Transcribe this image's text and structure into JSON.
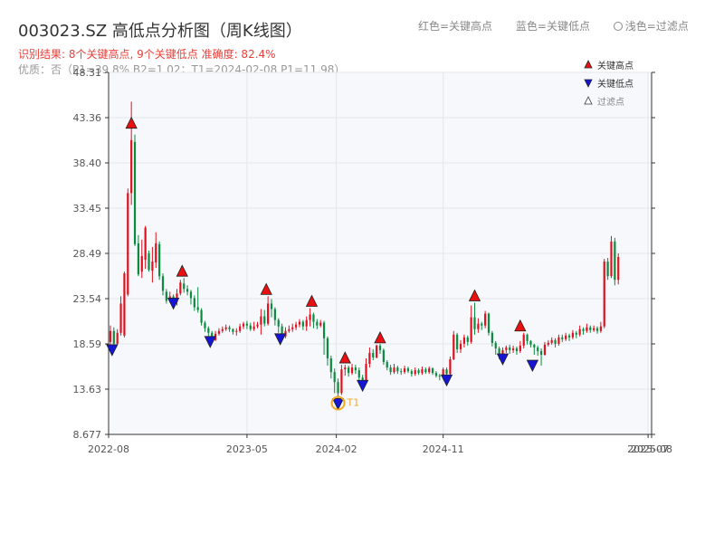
{
  "title": "003023.SZ 高低点分析图（周K线图）",
  "subtitle_result": "识别结果: 8个关键高点, 9个关键低点  准确度: 82.4%",
  "subtitle_detail": "优质：否（P1=39.8%  B2=1.02；T1=2024-02-08 P1=11.98）",
  "top_legend": {
    "red": "红色=关键高点",
    "blue": "蓝色=关键低点",
    "light": "浅色=过滤点"
  },
  "colors": {
    "up": "#e0101e",
    "down": "#0c8a3e",
    "high_marker": "#e81010",
    "low_marker": "#1515d6",
    "t1_marker": "#f5a623",
    "plot_bg": "#f6f8fb"
  },
  "chart_data": {
    "type": "candlestick",
    "xlabel": "",
    "ylabel": "",
    "x_ticks": [
      "2022-08",
      "2023-05",
      "2024-02",
      "2024-11",
      "2025-07",
      "2025-08"
    ],
    "y_ticks": [
      "8.677",
      "13.63",
      "18.59",
      "23.54",
      "28.49",
      "33.45",
      "38.40",
      "43.36",
      "48.31"
    ],
    "ylim": [
      8.677,
      48.31
    ],
    "x_range_weeks": [
      0,
      155
    ],
    "legend_position": "top-right",
    "legend": [
      {
        "label": "关键高点",
        "marker": "triangle-up",
        "color": "#e81010"
      },
      {
        "label": "关键低点",
        "marker": "triangle-down",
        "color": "#1515d6"
      },
      {
        "label": "过滤点",
        "marker": "triangle-up-hollow",
        "color": "#888888"
      }
    ],
    "t1_label": "T1",
    "key_highs": [
      {
        "week": 6.5,
        "value": 42.0
      },
      {
        "week": 21,
        "value": 25.8
      },
      {
        "week": 45,
        "value": 23.8
      },
      {
        "week": 58,
        "value": 22.5
      },
      {
        "week": 67.5,
        "value": 16.3
      },
      {
        "week": 77.5,
        "value": 18.5
      },
      {
        "week": 104.5,
        "value": 23.1
      },
      {
        "week": 117.5,
        "value": 19.8
      }
    ],
    "key_lows": [
      {
        "week": 1,
        "value": 17.9
      },
      {
        "week": 18.5,
        "value": 23.0
      },
      {
        "week": 29,
        "value": 18.8
      },
      {
        "week": 49,
        "value": 19.1
      },
      {
        "week": 65.5,
        "value": 12.0
      },
      {
        "week": 72.5,
        "value": 14.0
      },
      {
        "week": 96.5,
        "value": 14.6
      },
      {
        "week": 112.5,
        "value": 16.9
      },
      {
        "week": 121,
        "value": 16.2
      }
    ],
    "t1_point": {
      "week": 65.5,
      "value": 12.0
    },
    "weekly_candles": [
      [
        18.8,
        20.0,
        20.6,
        18.2
      ],
      [
        20.0,
        18.6,
        20.4,
        18.3
      ],
      [
        18.6,
        19.8,
        20.2,
        18.5
      ],
      [
        19.8,
        23.0,
        23.8,
        19.5
      ],
      [
        19.5,
        26.3,
        26.5,
        19.3
      ],
      [
        24.0,
        35.1,
        35.6,
        23.8
      ],
      [
        35.1,
        40.9,
        45.1,
        33.8
      ],
      [
        40.7,
        29.5,
        41.5,
        29.3
      ],
      [
        29.6,
        26.2,
        30.5,
        26.0
      ],
      [
        26.5,
        28.2,
        30.0,
        25.8
      ],
      [
        27.8,
        31.3,
        31.5,
        26.8
      ],
      [
        28.5,
        26.7,
        28.8,
        26.5
      ],
      [
        26.6,
        27.6,
        29.2,
        25.3
      ],
      [
        27.5,
        29.6,
        30.8,
        26.9
      ],
      [
        29.5,
        26.0,
        29.8,
        25.6
      ],
      [
        26.0,
        24.4,
        26.3,
        23.9
      ],
      [
        24.3,
        23.3,
        24.6,
        23.0
      ],
      [
        23.3,
        23.8,
        24.3,
        23.1
      ],
      [
        23.8,
        23.2,
        24.0,
        22.9
      ],
      [
        23.2,
        24.1,
        24.6,
        22.8
      ],
      [
        24.1,
        25.3,
        25.6,
        23.9
      ],
      [
        25.2,
        24.6,
        25.8,
        24.2
      ],
      [
        24.6,
        24.3,
        25.0,
        23.9
      ],
      [
        24.3,
        23.6,
        24.5,
        22.9
      ],
      [
        23.6,
        22.6,
        23.9,
        22.2
      ],
      [
        22.6,
        22.3,
        24.8,
        22.0
      ],
      [
        22.3,
        20.9,
        22.5,
        20.6
      ],
      [
        20.9,
        20.3,
        21.1,
        19.9
      ],
      [
        20.3,
        19.8,
        20.5,
        19.4
      ],
      [
        19.8,
        19.0,
        20.0,
        18.8
      ],
      [
        19.0,
        19.7,
        20.0,
        18.9
      ],
      [
        19.7,
        20.0,
        20.3,
        19.5
      ],
      [
        20.0,
        20.2,
        20.5,
        19.8
      ],
      [
        20.2,
        20.4,
        20.7,
        20.0
      ],
      [
        20.4,
        20.2,
        20.6,
        19.9
      ],
      [
        20.2,
        19.9,
        20.3,
        19.6
      ],
      [
        19.9,
        20.0,
        20.3,
        19.5
      ],
      [
        20.0,
        20.5,
        20.8,
        19.8
      ],
      [
        20.5,
        20.8,
        21.0,
        20.2
      ],
      [
        20.8,
        20.6,
        21.1,
        20.2
      ],
      [
        20.6,
        20.2,
        20.9,
        20.0
      ],
      [
        20.2,
        20.5,
        21.0,
        20.0
      ],
      [
        20.5,
        20.7,
        21.0,
        20.3
      ],
      [
        20.7,
        21.6,
        22.4,
        19.6
      ],
      [
        21.6,
        20.8,
        22.3,
        20.5
      ],
      [
        20.8,
        23.0,
        23.8,
        20.6
      ],
      [
        23.0,
        22.4,
        23.5,
        21.5
      ],
      [
        22.4,
        21.2,
        22.6,
        20.6
      ],
      [
        21.2,
        20.5,
        21.4,
        19.8
      ],
      [
        20.5,
        19.4,
        20.8,
        19.1
      ],
      [
        19.4,
        20.0,
        20.4,
        19.2
      ],
      [
        20.0,
        20.2,
        20.6,
        19.8
      ],
      [
        20.2,
        20.4,
        20.8,
        19.9
      ],
      [
        20.4,
        20.7,
        21.0,
        20.1
      ],
      [
        20.7,
        21.0,
        21.3,
        20.4
      ],
      [
        21.0,
        20.5,
        21.2,
        20.1
      ],
      [
        20.5,
        21.2,
        21.6,
        20.0
      ],
      [
        21.2,
        21.8,
        22.5,
        20.5
      ],
      [
        21.8,
        21.0,
        22.0,
        20.3
      ],
      [
        21.0,
        20.6,
        21.3,
        20.2
      ],
      [
        20.6,
        20.9,
        21.2,
        20.4
      ],
      [
        20.9,
        19.2,
        21.1,
        17.4
      ],
      [
        19.2,
        17.0,
        19.4,
        16.2
      ],
      [
        17.0,
        15.5,
        17.3,
        14.8
      ],
      [
        15.5,
        14.4,
        15.9,
        13.2
      ],
      [
        14.4,
        13.2,
        14.8,
        12.0
      ],
      [
        13.2,
        15.8,
        16.3,
        13.0
      ],
      [
        15.8,
        16.0,
        16.3,
        15.1
      ],
      [
        16.0,
        15.4,
        16.2,
        15.0
      ],
      [
        15.4,
        16.0,
        16.4,
        15.2
      ],
      [
        16.0,
        15.7,
        16.3,
        15.3
      ],
      [
        15.7,
        14.9,
        16.0,
        14.6
      ],
      [
        14.9,
        14.5,
        15.2,
        14.0
      ],
      [
        14.5,
        16.4,
        17.0,
        14.3
      ],
      [
        16.4,
        17.6,
        18.2,
        16.0
      ],
      [
        17.6,
        17.1,
        18.0,
        16.8
      ],
      [
        17.1,
        18.4,
        18.5,
        17.0
      ],
      [
        18.4,
        17.9,
        18.6,
        17.5
      ],
      [
        17.9,
        16.6,
        18.1,
        16.3
      ],
      [
        16.6,
        16.0,
        16.8,
        15.7
      ],
      [
        16.0,
        15.5,
        16.3,
        15.2
      ],
      [
        15.5,
        16.0,
        16.4,
        15.3
      ],
      [
        16.0,
        15.6,
        16.2,
        15.3
      ],
      [
        15.6,
        15.5,
        15.9,
        15.2
      ],
      [
        15.5,
        15.9,
        16.2,
        15.3
      ],
      [
        15.9,
        15.6,
        16.1,
        15.4
      ],
      [
        15.6,
        15.3,
        15.8,
        15.0
      ],
      [
        15.3,
        15.7,
        16.0,
        15.1
      ],
      [
        15.7,
        15.4,
        15.9,
        15.2
      ],
      [
        15.4,
        15.8,
        16.1,
        15.2
      ],
      [
        15.8,
        15.5,
        16.0,
        15.3
      ],
      [
        15.5,
        15.9,
        16.1,
        15.3
      ],
      [
        15.9,
        15.4,
        16.0,
        15.2
      ],
      [
        15.4,
        15.1,
        15.6,
        14.9
      ],
      [
        15.1,
        15.0,
        15.3,
        14.6
      ],
      [
        15.0,
        15.8,
        16.0,
        14.7
      ],
      [
        15.8,
        15.3,
        16.0,
        14.6
      ],
      [
        15.3,
        16.9,
        17.2,
        15.1
      ],
      [
        16.9,
        19.6,
        20.0,
        16.8
      ],
      [
        19.6,
        18.0,
        19.8,
        17.6
      ],
      [
        18.0,
        18.6,
        19.0,
        17.6
      ],
      [
        18.6,
        19.3,
        19.6,
        18.2
      ],
      [
        19.3,
        18.8,
        19.5,
        18.4
      ],
      [
        18.8,
        21.5,
        22.8,
        18.6
      ],
      [
        21.5,
        20.2,
        23.1,
        19.6
      ],
      [
        20.2,
        20.8,
        21.4,
        19.8
      ],
      [
        20.8,
        20.6,
        21.0,
        20.1
      ],
      [
        20.6,
        21.9,
        22.2,
        20.3
      ],
      [
        21.9,
        19.8,
        22.0,
        19.5
      ],
      [
        19.8,
        18.7,
        20.0,
        18.3
      ],
      [
        18.7,
        18.1,
        18.9,
        17.4
      ],
      [
        18.1,
        17.4,
        18.3,
        16.9
      ],
      [
        17.4,
        17.9,
        18.2,
        17.2
      ],
      [
        17.9,
        18.2,
        18.4,
        17.6
      ],
      [
        18.2,
        17.9,
        18.5,
        17.5
      ],
      [
        17.9,
        18.1,
        18.4,
        17.6
      ],
      [
        18.1,
        17.8,
        18.3,
        17.4
      ],
      [
        17.8,
        18.4,
        18.9,
        17.6
      ],
      [
        18.4,
        19.6,
        19.8,
        18.1
      ],
      [
        19.6,
        18.9,
        19.7,
        18.5
      ],
      [
        18.9,
        18.5,
        19.0,
        18.2
      ],
      [
        18.5,
        18.2,
        18.6,
        17.4
      ],
      [
        18.2,
        17.8,
        18.4,
        17.3
      ],
      [
        17.8,
        17.4,
        18.1,
        16.2
      ],
      [
        17.4,
        18.5,
        18.8,
        17.3
      ],
      [
        18.5,
        18.7,
        19.0,
        18.3
      ],
      [
        18.7,
        19.0,
        19.3,
        18.5
      ],
      [
        19.0,
        18.6,
        19.2,
        18.2
      ],
      [
        18.6,
        19.3,
        19.6,
        18.4
      ],
      [
        19.3,
        19.1,
        19.6,
        18.8
      ],
      [
        19.1,
        19.5,
        19.8,
        18.9
      ],
      [
        19.5,
        19.3,
        19.7,
        18.9
      ],
      [
        19.3,
        19.8,
        20.1,
        19.1
      ],
      [
        19.8,
        19.6,
        20.0,
        19.2
      ],
      [
        19.6,
        20.2,
        20.6,
        19.4
      ],
      [
        20.2,
        20.0,
        20.4,
        19.6
      ],
      [
        20.0,
        20.4,
        20.8,
        19.8
      ],
      [
        20.4,
        20.1,
        20.6,
        19.8
      ],
      [
        20.1,
        20.3,
        20.6,
        19.9
      ],
      [
        20.3,
        20.0,
        20.5,
        19.7
      ],
      [
        20.0,
        20.5,
        21.0,
        19.8
      ],
      [
        20.5,
        27.6,
        27.9,
        20.3
      ],
      [
        27.6,
        26.0,
        28.0,
        25.6
      ],
      [
        26.0,
        29.8,
        30.4,
        25.8
      ],
      [
        29.8,
        25.6,
        30.2,
        25.0
      ],
      [
        25.6,
        28.1,
        28.5,
        25.1
      ]
    ]
  }
}
